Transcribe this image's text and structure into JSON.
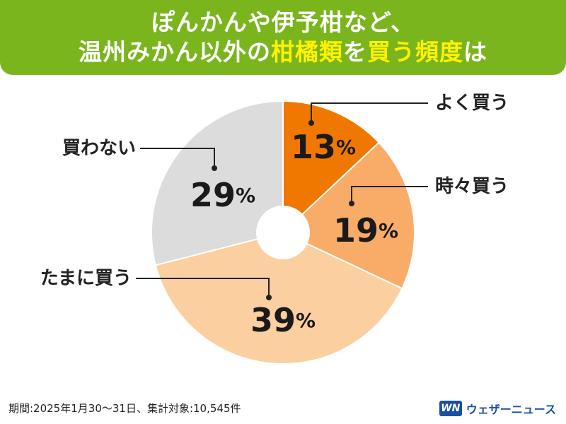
{
  "header": {
    "line1": "ぽんかんや伊予柑など、",
    "line2_pre": "温州みかん以外の",
    "line2_hl1": "柑橘類",
    "line2_mid": "を",
    "line2_hl2": "買う頻度",
    "line2_post": "は"
  },
  "chart_data": {
    "type": "pie",
    "donut": true,
    "unit": "%",
    "slices": [
      {
        "label": "よく買う",
        "value": 13,
        "color": "#f07800"
      },
      {
        "label": "時々買う",
        "value": 19,
        "color": "#f8ac68"
      },
      {
        "label": "たまに買う",
        "value": 39,
        "color": "#fbcfa0"
      },
      {
        "label": "買わない",
        "value": 29,
        "color": "#dcdcdc"
      }
    ]
  },
  "footer": {
    "note": "期間:2025年1月30〜31日、集計対象:10,545件"
  },
  "brand": {
    "mark": "WN",
    "name": "ウェザーニュース"
  }
}
